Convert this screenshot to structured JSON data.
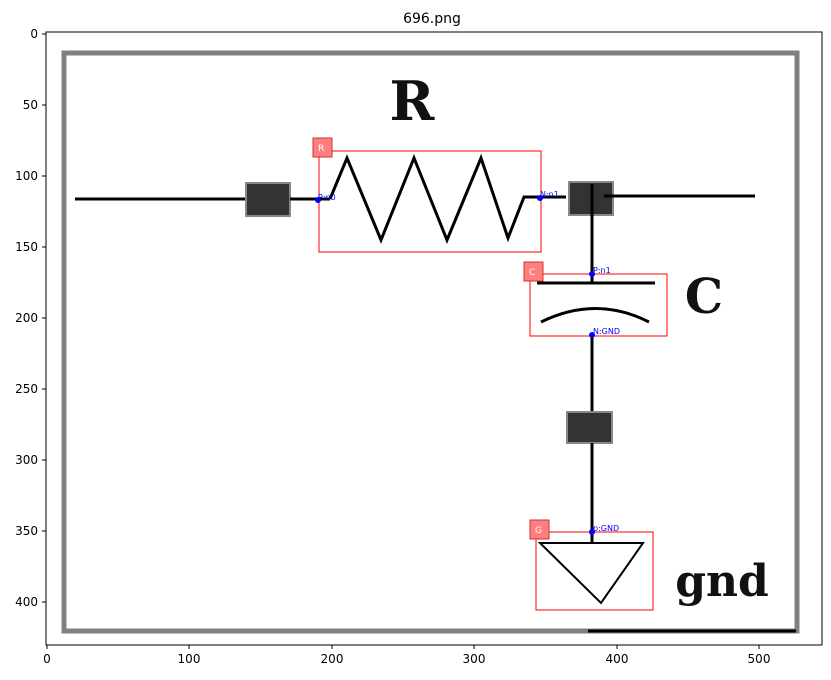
{
  "figure": {
    "title": "696.png",
    "x_ticks": [
      "0",
      "100",
      "200",
      "300",
      "400",
      "500"
    ],
    "y_ticks": [
      "0",
      "50",
      "100",
      "150",
      "200",
      "250",
      "300",
      "350",
      "400"
    ]
  },
  "diagram": {
    "labels": {
      "resistor": "R",
      "capacitor": "C",
      "ground": "gnd"
    },
    "components": [
      {
        "id": "R",
        "tag": "R",
        "pins": [
          "P:n0",
          "N:n1"
        ]
      },
      {
        "id": "C",
        "tag": "C",
        "pins": [
          "P:n1",
          "N:GND"
        ]
      },
      {
        "id": "G",
        "tag": "G",
        "pins": [
          "p:GND"
        ]
      }
    ]
  },
  "colors": {
    "box": "#ff0000",
    "tag_fill": "#ff7f7f",
    "pin": "#0000ff",
    "wire": "#000000",
    "border": "#808080",
    "node": "#333333"
  }
}
